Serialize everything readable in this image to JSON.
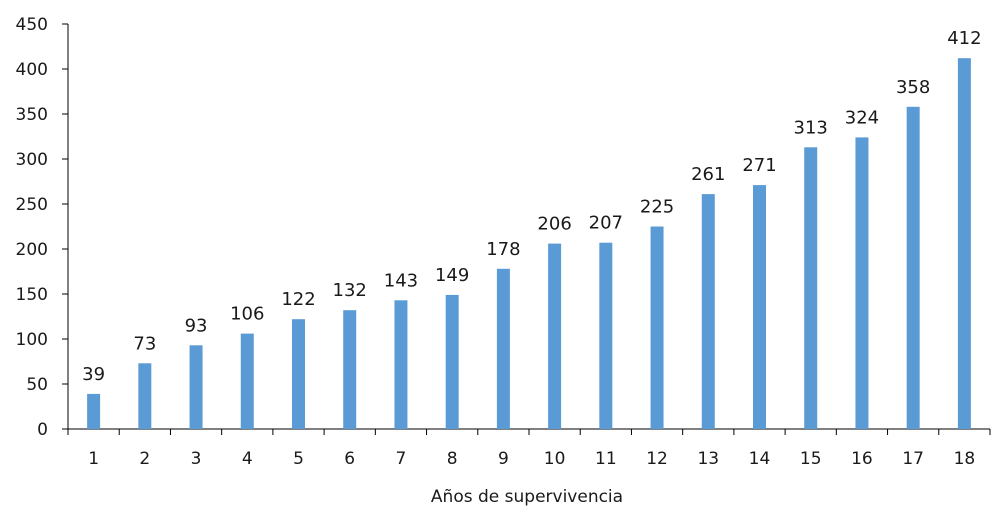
{
  "chart_data": {
    "type": "bar",
    "categories": [
      "1",
      "2",
      "3",
      "4",
      "5",
      "6",
      "7",
      "8",
      "9",
      "10",
      "11",
      "12",
      "13",
      "14",
      "15",
      "16",
      "17",
      "18"
    ],
    "values": [
      39,
      73,
      93,
      106,
      122,
      132,
      143,
      149,
      178,
      206,
      207,
      225,
      261,
      271,
      313,
      324,
      358,
      412
    ],
    "xlabel": "Años de supervivencia",
    "ylabel": "",
    "ylim": [
      0,
      450
    ],
    "yticks": [
      0,
      50,
      100,
      150,
      200,
      250,
      300,
      350,
      400,
      450
    ],
    "grid": false,
    "legend": "none",
    "bar_color": "#5b9bd5",
    "data_labels": true
  }
}
